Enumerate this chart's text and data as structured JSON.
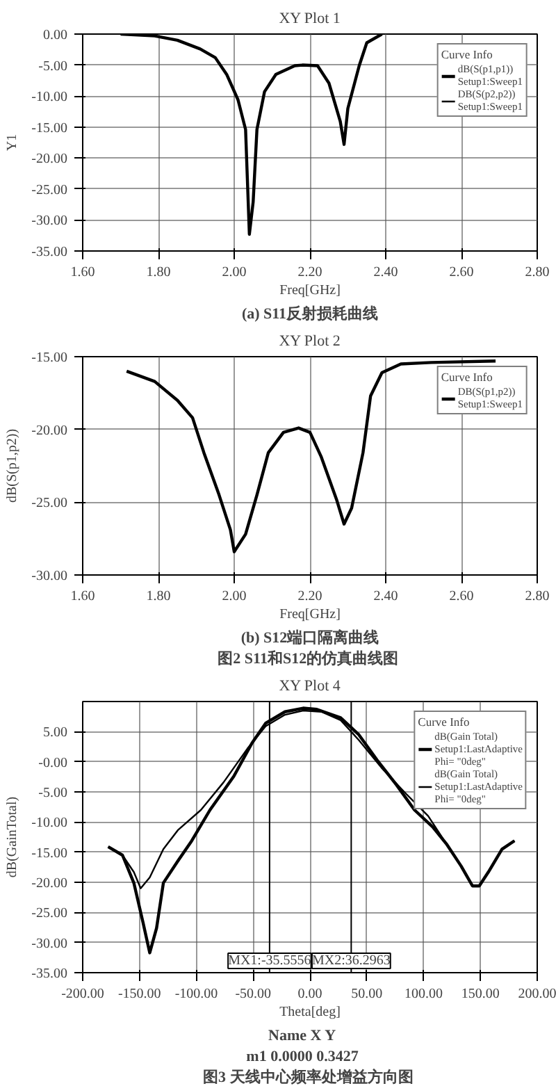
{
  "chart_data": [
    {
      "type": "line",
      "title": "XY Plot 1",
      "xlabel": "Freq[GHz]",
      "ylabel": "Y1",
      "legend_title": "Curve Info",
      "legend": "top right",
      "grid": true,
      "line_style": "solid",
      "x": [
        1.7,
        1.79,
        1.85,
        1.91,
        1.95,
        1.98,
        2.01,
        2.03,
        2.04,
        2.05,
        2.06,
        2.08,
        2.11,
        2.16,
        2.18,
        2.22,
        2.25,
        2.28,
        2.29,
        2.3,
        2.33,
        2.35,
        2.39
      ],
      "series": [
        {
          "name": "dB(S(p1,p1))\nSetup1:Sweep1",
          "color": "#000000",
          "values": [
            0,
            -0.3,
            -1.0,
            -2.4,
            -3.8,
            -6.5,
            -10.6,
            -15.4,
            -32.3,
            -27.1,
            -15.4,
            -9.3,
            -6.5,
            -5.1,
            -5.0,
            -5.1,
            -7.9,
            -14.1,
            -17.8,
            -12.0,
            -5.1,
            -1.4,
            0
          ]
        },
        {
          "name": "DB(S(p2,p2))\nSetup1:Sweep1",
          "color": "#000000",
          "values": [
            null,
            null,
            null,
            null,
            null,
            null,
            null,
            null,
            null,
            null,
            null,
            null,
            null,
            null,
            null,
            null,
            null,
            null,
            null,
            null,
            null,
            null,
            null
          ]
        }
      ],
      "xlim": [
        1.6,
        2.8
      ],
      "xticks": [
        {
          "value": 1.6,
          "label": "1.60"
        },
        {
          "value": 1.8,
          "label": "1.80"
        },
        {
          "value": 2.0,
          "label": "2.00"
        },
        {
          "value": 2.2,
          "label": "2.20"
        },
        {
          "value": 2.4,
          "label": "2.40"
        },
        {
          "value": 2.6,
          "label": "2.60"
        },
        {
          "value": 2.8,
          "label": "2.80"
        }
      ],
      "ylim": [
        -35,
        0
      ],
      "yticks": [
        {
          "value": -35,
          "label": "-35.00"
        },
        {
          "value": -30,
          "label": "-30.00"
        },
        {
          "value": -25,
          "label": "-25.00"
        },
        {
          "value": -20,
          "label": "-20.00"
        },
        {
          "value": -15,
          "label": "-15.00"
        },
        {
          "value": -10,
          "label": "-10.00"
        },
        {
          "value": -5,
          "label": "-5.00"
        },
        {
          "value": 0,
          "label": "0.00"
        }
      ],
      "annotations": [
        "(a) S11反射损耗曲线"
      ]
    },
    {
      "type": "line",
      "title": "XY Plot 2",
      "xlabel": "Freq[GHz]",
      "ylabel": "dB(S(p1,p2))",
      "legend_title": "Curve Info",
      "legend": "top right",
      "grid": true,
      "line_style": "solid",
      "x": [
        1.716,
        1.79,
        1.85,
        1.89,
        1.92,
        1.96,
        1.99,
        2.0,
        2.03,
        2.06,
        2.09,
        2.13,
        2.17,
        2.2,
        2.23,
        2.27,
        2.29,
        2.31,
        2.34,
        2.36,
        2.39,
        2.44,
        2.52,
        2.69
      ],
      "series": [
        {
          "name": "DB(S(p1,p2))\nSetup1:Sweep1",
          "color": "#000000",
          "values": [
            -16.0,
            -16.7,
            -18.0,
            -19.2,
            -21.6,
            -24.5,
            -26.9,
            -28.4,
            -27.2,
            -24.5,
            -21.6,
            -20.2,
            -19.9,
            -20.2,
            -21.9,
            -24.8,
            -26.5,
            -25.4,
            -21.6,
            -17.7,
            -16.1,
            -15.5,
            -15.4,
            -15.3
          ]
        }
      ],
      "xlim": [
        1.6,
        2.8
      ],
      "xticks": [
        {
          "value": 1.6,
          "label": "1.60"
        },
        {
          "value": 1.8,
          "label": "1.80"
        },
        {
          "value": 2.0,
          "label": "2.00"
        },
        {
          "value": 2.2,
          "label": "2.20"
        },
        {
          "value": 2.4,
          "label": "2.40"
        },
        {
          "value": 2.6,
          "label": "2.60"
        },
        {
          "value": 2.8,
          "label": "2.80"
        }
      ],
      "ylim": [
        -30,
        -15
      ],
      "yticks": [
        {
          "value": -30,
          "label": "-30.00"
        },
        {
          "value": -25,
          "label": "-25.00"
        },
        {
          "value": -20,
          "label": "-20.00"
        },
        {
          "value": -15,
          "label": "-15.00"
        }
      ],
      "annotations": [
        "(b) S12端口隔离曲线",
        "图2  S11和S12的仿真曲线图"
      ]
    },
    {
      "type": "line",
      "title": "XY Plot 4",
      "xlabel": "Theta[deg]",
      "ylabel": "dB(GainTotal)",
      "legend_title": "Curve Info",
      "legend": "top right",
      "grid": true,
      "line_style": "solid",
      "series": [
        {
          "name": "dB(Gain Total)\nSetup1:LastAdaptive\nPhi= \"0deg\"",
          "color": "#000000",
          "x": [
            -177.6,
            -165,
            -155,
            -147,
            -141,
            -135,
            -129,
            -116,
            -104,
            -88,
            -67,
            -51,
            -39,
            -22,
            -6,
            6,
            27,
            43,
            59,
            76,
            92,
            108,
            120,
            133,
            143,
            149,
            157,
            169,
            180
          ],
          "values": [
            -14.1,
            -15.5,
            -20.1,
            -26.6,
            -31.7,
            -27.6,
            -20.1,
            -16.4,
            -13.1,
            -8.0,
            -2.4,
            3.1,
            6.4,
            8.3,
            8.9,
            8.7,
            7.3,
            4.5,
            0.3,
            -3.8,
            -8.0,
            -10.8,
            -13.6,
            -17.3,
            -20.6,
            -20.6,
            -18.3,
            -14.5,
            -13.1
          ]
        },
        {
          "name": "dB(Gain Total)\nSetup1:LastAdaptive\nPhi= \"0deg\"",
          "color": "#000000",
          "x": [
            -177.6,
            -165,
            -155,
            -149,
            -141,
            -129,
            -116,
            -96,
            -76,
            -55,
            -39,
            -22,
            -6,
            10,
            27,
            43,
            63,
            84,
            104,
            120,
            133,
            143,
            149,
            157,
            169,
            180
          ],
          "values": [
            -14.1,
            -15.5,
            -18.3,
            -21.0,
            -19.2,
            -14.5,
            -11.3,
            -8.0,
            -3.4,
            2.2,
            5.9,
            7.8,
            8.5,
            8.3,
            6.9,
            3.6,
            -1.0,
            -5.2,
            -9.0,
            -13.6,
            -17.3,
            -20.6,
            -20.6,
            -18.3,
            -14.5,
            -13.1
          ]
        }
      ],
      "xlim": [
        -200,
        200
      ],
      "xticks": [
        {
          "value": -200,
          "label": "-200.00"
        },
        {
          "value": -150,
          "label": "-150.00"
        },
        {
          "value": -100,
          "label": "-100.00"
        },
        {
          "value": -50,
          "label": "-50.00"
        },
        {
          "value": 0,
          "label": "0.00"
        },
        {
          "value": 50,
          "label": "50.00"
        },
        {
          "value": 100,
          "label": "100.00"
        },
        {
          "value": 150,
          "label": "150.00"
        },
        {
          "value": 200,
          "label": "200.00"
        }
      ],
      "ylim": [
        -35,
        10
      ],
      "yticks": [
        {
          "value": -35,
          "label": "-35.00"
        },
        {
          "value": -30,
          "label": "-30.00"
        },
        {
          "value": -25,
          "label": "-25.00"
        },
        {
          "value": -20,
          "label": "-20.00"
        },
        {
          "value": -15,
          "label": "-15.00"
        },
        {
          "value": -10,
          "label": "-10.00"
        },
        {
          "value": -5,
          "label": "-5.00"
        },
        {
          "value": 0,
          "label": "-0.00"
        },
        {
          "value": 5,
          "label": "5.00"
        }
      ],
      "ref_lines": [
        {
          "axis": "x",
          "value": -35.5556,
          "label": "MX1:-35.5556"
        },
        {
          "axis": "x",
          "value": 36.2963,
          "label": "MX2:36.2963"
        }
      ],
      "annotations": [
        "Name   X   Y",
        "m1   0.0000   0.3427",
        "图3  天线中心频率处增益方向图"
      ]
    }
  ]
}
